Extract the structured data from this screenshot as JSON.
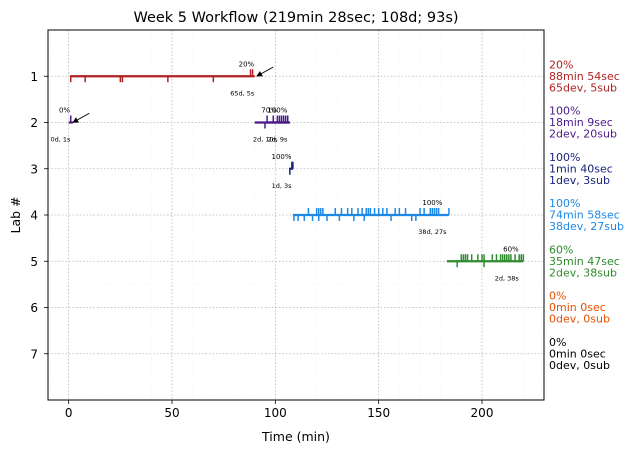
{
  "chart_data": {
    "type": "line",
    "title": "Week 5 Workflow (219min 28sec; 108d; 93s)",
    "xlabel": "Time (min)",
    "ylabel": "Lab #",
    "xlim": [
      -10,
      230
    ],
    "ylim": [
      8,
      0
    ],
    "xticks": [
      0,
      50,
      100,
      150,
      200
    ],
    "yticks": [
      1,
      2,
      3,
      4,
      5,
      6,
      7
    ],
    "grid": true,
    "series": [
      {
        "lab": 1,
        "color": "#b22222",
        "start": 1,
        "end": 90,
        "dev_ticks": [
          1,
          8,
          25,
          26,
          48,
          70
        ],
        "sub_ticks": [
          88,
          89
        ],
        "bar_label": "20%",
        "bar_label_x": 86,
        "count_label": "65d, 5s",
        "count_label_x": 84,
        "arrow": {
          "from_x": 99,
          "from_y": 0.8,
          "to_x": 91,
          "to_y": 1.0
        },
        "side_lines": [
          "20%",
          "88min 54sec",
          "65dev, 5sub"
        ]
      },
      {
        "lab": 2,
        "color": "#4b1a8a",
        "start": 0,
        "end": 2,
        "dev_ticks": [],
        "sub_ticks": [
          1
        ],
        "bar_label": "0%",
        "bar_label_x": -2,
        "count_label": "0d, 1s",
        "count_label_x": -4,
        "arrow": {
          "from_x": 10,
          "from_y": 1.8,
          "to_x": 2,
          "to_y": 2.0
        }
      },
      {
        "lab": 2,
        "color": "#4b1a8a",
        "start": 90,
        "end": 107,
        "dev_ticks": [
          95
        ],
        "sub_ticks": [
          96,
          99,
          101,
          102,
          103,
          104,
          105,
          106
        ],
        "bar_label": "70%",
        "bar_label_x": 97,
        "count_label": "2d, 10s",
        "count_label_x": 95
      },
      {
        "lab": 2,
        "color": "#4b1a8a",
        "start": 96,
        "end": 107,
        "dev_ticks": [],
        "sub_ticks": [],
        "bar_label": "100%",
        "bar_label_x": 101,
        "count_label": "2d, 9s",
        "count_label_x": 101,
        "side_lines": [
          "100%",
          "18min 9sec",
          "2dev, 20sub"
        ]
      },
      {
        "lab": 3,
        "color": "#1a237e",
        "start": 107,
        "end": 108.5,
        "dev_ticks": [
          107
        ],
        "sub_ticks": [
          108,
          108.5
        ],
        "bar_label": "100%",
        "bar_label_x": 103,
        "count_label": "1d, 3s",
        "count_label_x": 103,
        "side_lines": [
          "100%",
          "1min 40sec",
          "1dev, 3sub"
        ]
      },
      {
        "lab": 4,
        "color": "#1e88e5",
        "start": 108.5,
        "end": 184,
        "dev_ticks": [
          109,
          111,
          114,
          118,
          121,
          125,
          131,
          138,
          143,
          156,
          166,
          168
        ],
        "sub_ticks": [
          116,
          120,
          121,
          122,
          123,
          129,
          132,
          135,
          137,
          140,
          142,
          144,
          145,
          146,
          148,
          150,
          152,
          154,
          158,
          160,
          163,
          170,
          172,
          175,
          176,
          177,
          178,
          179,
          184
        ],
        "bar_label": "100%",
        "bar_label_x": 176,
        "count_label": "38d, 27s",
        "count_label_x": 176,
        "side_lines": [
          "100%",
          "74min 58sec",
          "38dev, 27sub"
        ]
      },
      {
        "lab": 5,
        "color": "#2e8b2e",
        "start": 183,
        "end": 220,
        "dev_ticks": [
          188,
          201
        ],
        "sub_ticks": [
          190,
          191,
          192,
          193,
          195,
          198,
          200,
          201,
          205,
          207,
          209,
          210,
          211,
          212,
          213,
          214,
          216,
          218,
          219,
          220
        ],
        "bar_label": "60%",
        "bar_label_x": 214,
        "count_label": "2d, 38s",
        "count_label_x": 212,
        "side_lines": [
          "60%",
          "35min 47sec",
          "2dev, 38sub"
        ]
      },
      {
        "lab": 6,
        "color": "#e65100",
        "side_lines": [
          "0%",
          "0min 0sec",
          "0dev, 0sub"
        ]
      },
      {
        "lab": 7,
        "color": "#000000",
        "side_lines": [
          "0%",
          "0min 0sec",
          "0dev, 0sub"
        ]
      }
    ]
  }
}
